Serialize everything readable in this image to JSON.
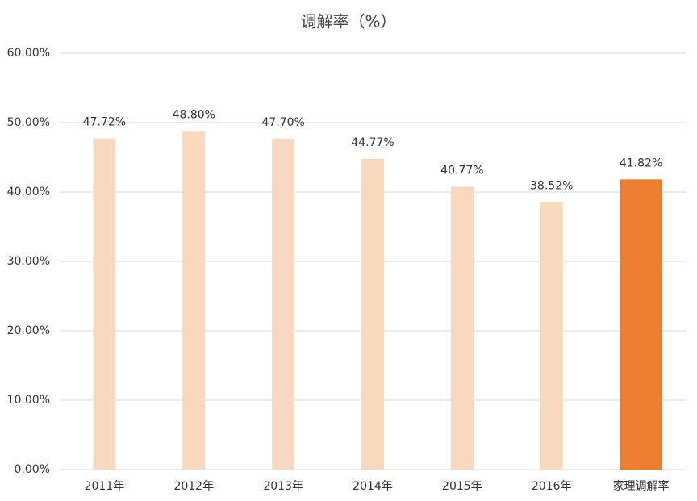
{
  "chart_data": {
    "type": "bar",
    "title": "调解率（%）",
    "categories": [
      "2011年",
      "2012年",
      "2013年",
      "2014年",
      "2015年",
      "2016年",
      "家理调解率"
    ],
    "values": [
      47.72,
      48.8,
      47.7,
      44.77,
      40.77,
      38.52,
      41.82
    ],
    "value_labels": [
      "47.72%",
      "48.80%",
      "47.70%",
      "44.77%",
      "40.77%",
      "38.52%",
      "41.82%"
    ],
    "colors": [
      "#f9d8c0",
      "#f9d8c0",
      "#f9d8c0",
      "#f9d8c0",
      "#f9d8c0",
      "#f9d8c0",
      "#ed7d31"
    ],
    "ylim": [
      0,
      60
    ],
    "yticks": [
      {
        "value": 0,
        "label": "0.00%"
      },
      {
        "value": 10,
        "label": "10.00%"
      },
      {
        "value": 20,
        "label": "20.00%"
      },
      {
        "value": 30,
        "label": "30.00%"
      },
      {
        "value": 40,
        "label": "40.00%"
      },
      {
        "value": 50,
        "label": "50.00%"
      },
      {
        "value": 60,
        "label": "60.00%"
      }
    ],
    "grid": true
  }
}
